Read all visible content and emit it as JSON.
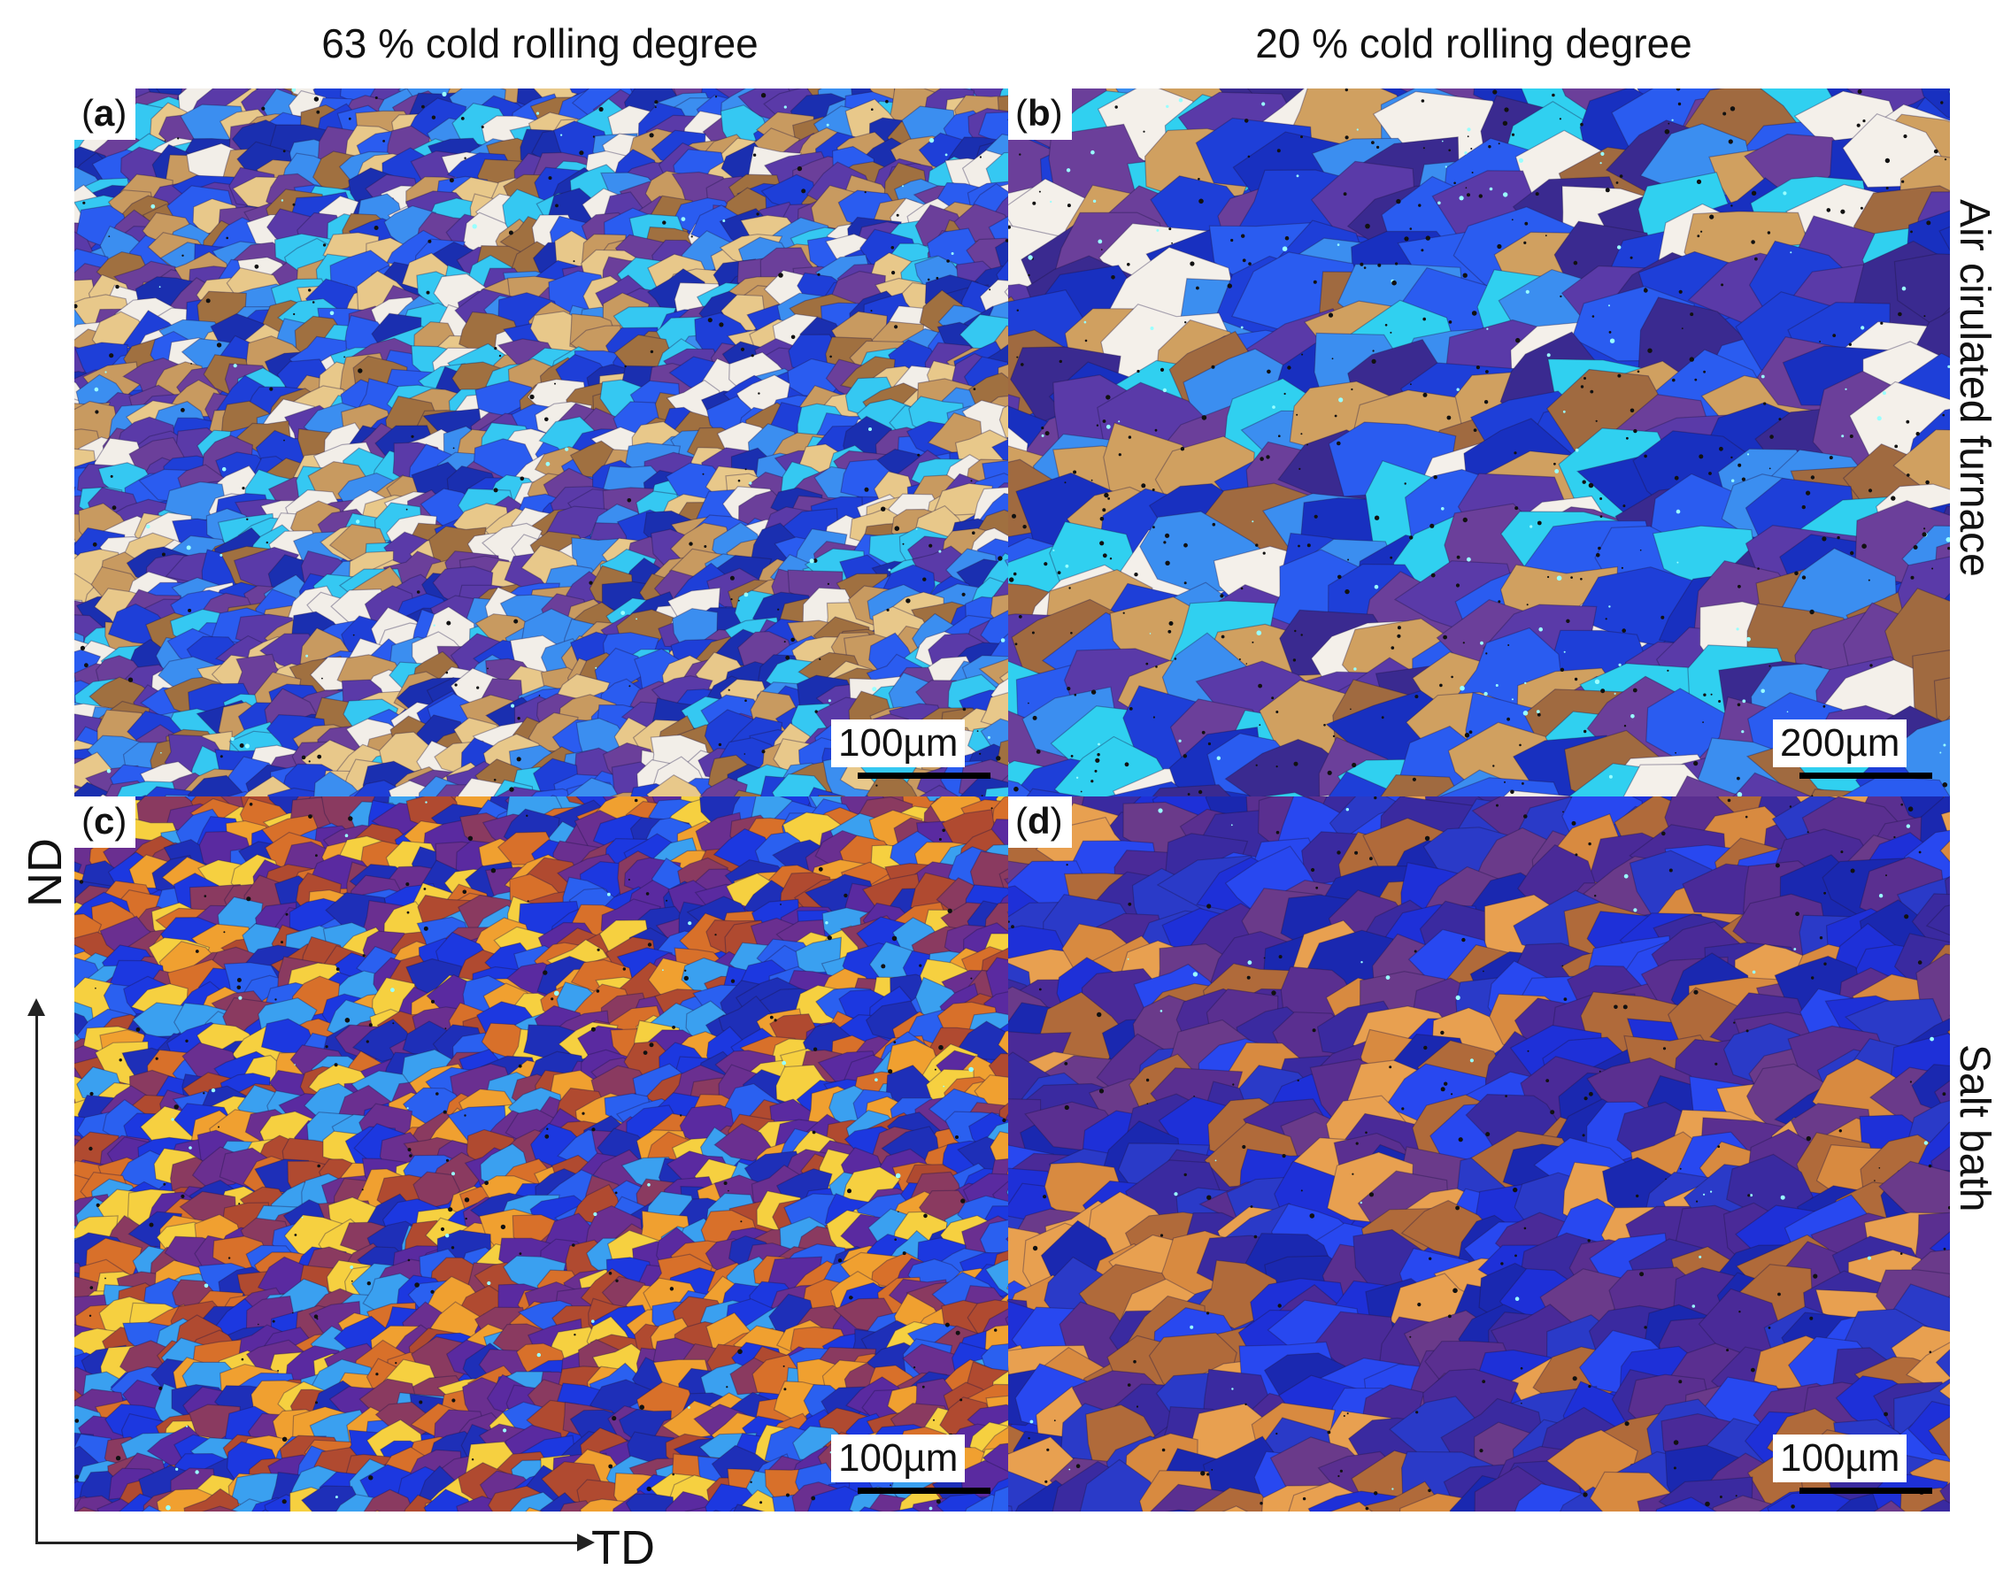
{
  "figure": {
    "col_titles": [
      "63 % cold rolling degree",
      "20 % cold rolling degree"
    ],
    "row_titles": [
      "Air cirulated furnace",
      "Salt bath"
    ],
    "axes": {
      "vertical": "ND",
      "horizontal": "TD"
    },
    "panels": [
      {
        "label_open": "(",
        "label_letter": "a",
        "label_close": ")",
        "scale": "100µm",
        "palette": [
          "#1e3fd8",
          "#2a5cf0",
          "#3b8ef0",
          "#35c8f2",
          "#5a3aa8",
          "#6b3f9a",
          "#a07040",
          "#c89a60",
          "#e8c88a",
          "#f2eee8",
          "#1a2fb0"
        ]
      },
      {
        "label_open": "(",
        "label_letter": "b",
        "label_close": ")",
        "scale": "200µm",
        "palette": [
          "#1e3fd8",
          "#2a5cf0",
          "#3b8ef0",
          "#30d0f0",
          "#5a3aa8",
          "#6b3f9a",
          "#a06a40",
          "#d0a060",
          "#f4f0ea",
          "#3a2a90",
          "#1830c0"
        ]
      },
      {
        "label_open": "(",
        "label_letter": "c",
        "label_close": ")",
        "scale": "100µm",
        "palette": [
          "#1c38e0",
          "#2a60f0",
          "#3aa0f0",
          "#5a2aa0",
          "#6a2f90",
          "#b04a30",
          "#d8702a",
          "#f0a030",
          "#f6d040",
          "#8a3a60",
          "#1e2fb8"
        ]
      },
      {
        "label_open": "(",
        "label_letter": "d",
        "label_close": ")",
        "scale": "100µm",
        "palette": [
          "#1e30d8",
          "#2848f0",
          "#3a2aa0",
          "#4a2a98",
          "#5a2f90",
          "#6a3a8a",
          "#b06a3a",
          "#d88a40",
          "#e8a050",
          "#2a3ac8",
          "#1a28b0"
        ]
      }
    ]
  }
}
